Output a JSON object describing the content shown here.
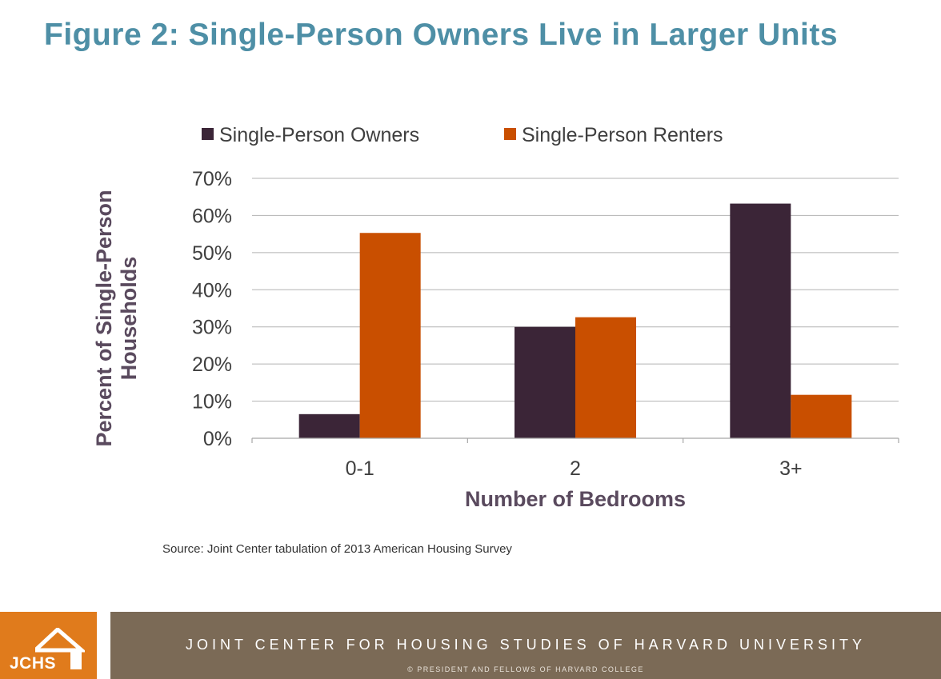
{
  "slide": {
    "title": "Figure 2: Single-Person Owners Live in Larger Units",
    "source": "Source: Joint Center tabulation of 2013 American Housing Survey"
  },
  "footer": {
    "logo_text": "JCHS",
    "logo_icon": "house-icon",
    "organization": "JOINT CENTER FOR HOUSING STUDIES OF HARVARD UNIVERSITY",
    "copyright": "© PRESIDENT AND FELLOWS OF HARVARD COLLEGE",
    "logo_color": "#e07b1c",
    "band_color": "#7b6a56"
  },
  "chart_data": {
    "type": "bar",
    "title": "",
    "xlabel": "Number of Bedrooms",
    "ylabel": "Percent of Single-Person Households",
    "categories": [
      "0-1",
      "2",
      "3+"
    ],
    "series": [
      {
        "name": "Single-Person Owners",
        "color": "#3b2537",
        "values": [
          6.5,
          30,
          63.2
        ]
      },
      {
        "name": "Single-Person Renters",
        "color": "#c94f00",
        "values": [
          55.3,
          32.6,
          11.7
        ]
      }
    ],
    "ylim": [
      0,
      70
    ],
    "yticks": [
      "0%",
      "10%",
      "20%",
      "30%",
      "40%",
      "50%",
      "60%",
      "70%"
    ],
    "grid": true,
    "legend_position": "top"
  }
}
